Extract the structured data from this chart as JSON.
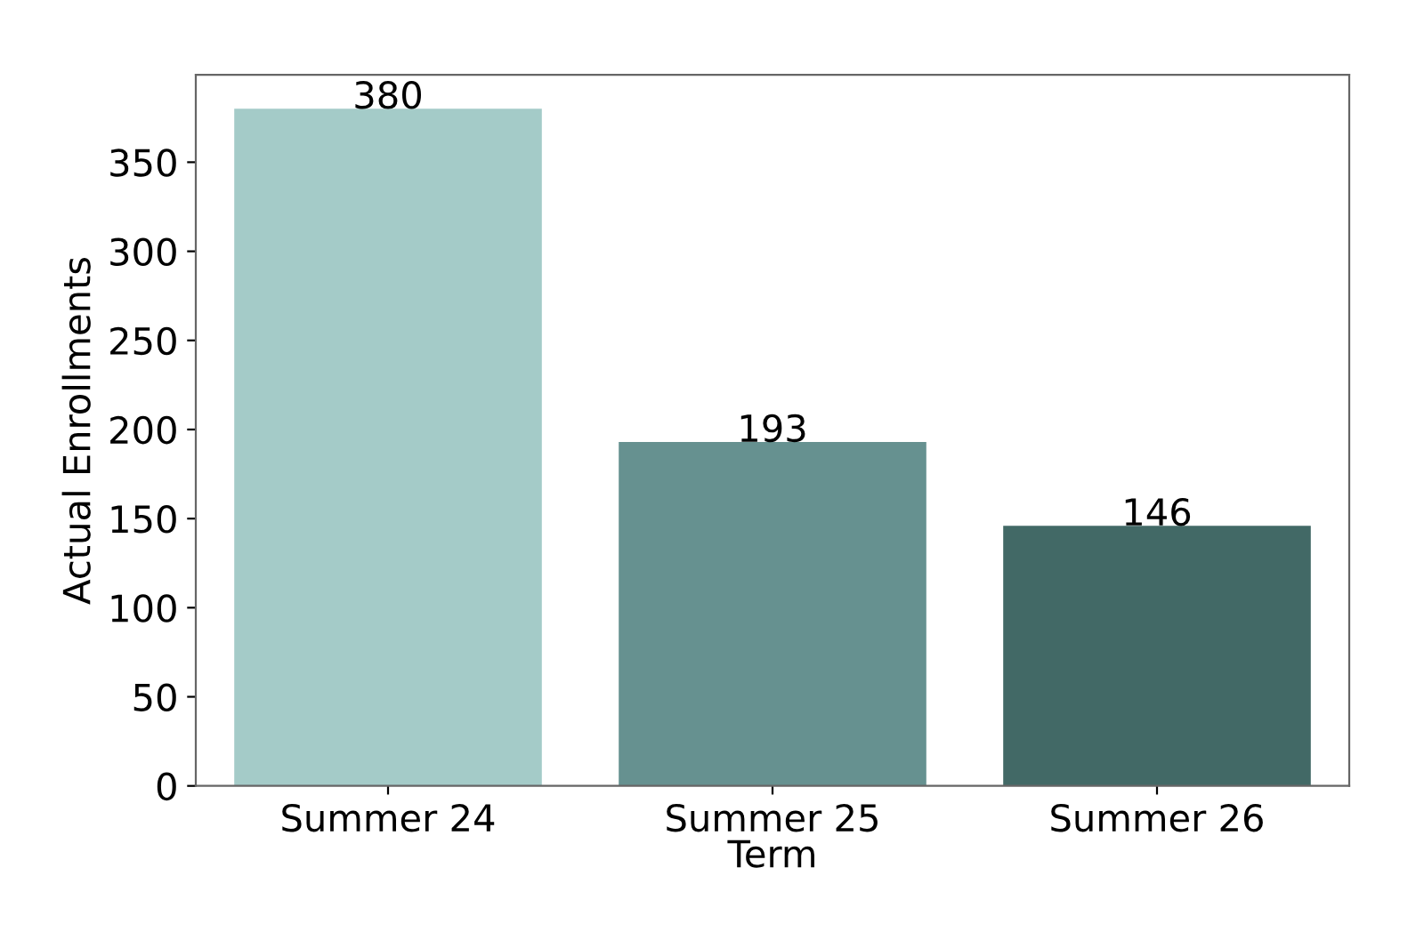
{
  "chart_data": {
    "type": "bar",
    "xlabel": "Term",
    "ylabel": "Actual Enrollments",
    "categories": [
      "Summer 24",
      "Summer 25",
      "Summer 26"
    ],
    "values": [
      380,
      193,
      146
    ],
    "colors": [
      "#a4cbc8",
      "#669190",
      "#426966"
    ],
    "ylim": [
      0,
      399
    ],
    "yticks": [
      0,
      50,
      100,
      150,
      200,
      250,
      300,
      350
    ],
    "data_labels": true,
    "grid": false
  }
}
